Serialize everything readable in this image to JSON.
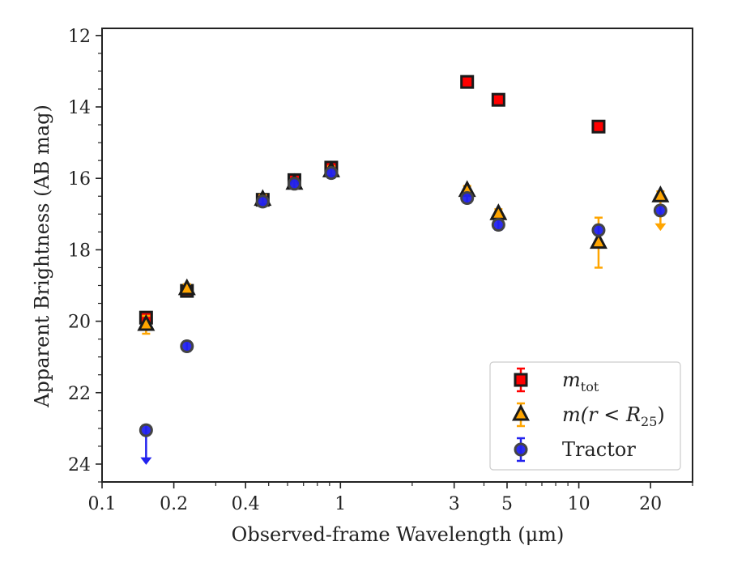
{
  "chart_data": {
    "type": "scatter",
    "xlabel": "Observed-frame Wavelength (μm)",
    "ylabel": "Apparent Brightness (AB mag)",
    "x_scale": "log",
    "xlim": [
      0.1,
      30
    ],
    "ylim": [
      24.5,
      11.8
    ],
    "y_inverted": true,
    "x_ticks": [
      {
        "value": 0.1,
        "label": "0.1"
      },
      {
        "value": 0.2,
        "label": "0.2"
      },
      {
        "value": 0.4,
        "label": "0.4"
      },
      {
        "value": 1,
        "label": "1"
      },
      {
        "value": 3,
        "label": "3"
      },
      {
        "value": 5,
        "label": "5"
      },
      {
        "value": 10,
        "label": "10"
      },
      {
        "value": 20,
        "label": "20"
      }
    ],
    "y_ticks": [
      12,
      14,
      16,
      18,
      20,
      22,
      24
    ],
    "legend_position": "lower-right",
    "legend": [
      {
        "main": "m",
        "sub": "tot",
        "series": 0
      },
      {
        "main": "m(r < R",
        "sub": "25",
        "after": ")",
        "series": 1
      },
      {
        "main": "Tractor",
        "sub": "",
        "series": 2
      }
    ],
    "series": [
      {
        "marker": "square",
        "color": "#ff0000",
        "edge_color": "#1a1a1a",
        "err_color": "#ff0000",
        "points": [
          {
            "x": 0.153,
            "y": 19.9
          },
          {
            "x": 0.227,
            "y": 19.15
          },
          {
            "x": 0.472,
            "y": 16.6
          },
          {
            "x": 0.641,
            "y": 16.05
          },
          {
            "x": 0.915,
            "y": 15.7
          },
          {
            "x": 3.4,
            "y": 13.3
          },
          {
            "x": 4.6,
            "y": 13.8
          },
          {
            "x": 12.1,
            "y": 14.55
          }
        ]
      },
      {
        "marker": "triangle",
        "color": "#ffa500",
        "edge_color": "#1a1a1a",
        "err_color": "#ffa500",
        "points": [
          {
            "x": 0.153,
            "y": 20.1,
            "err": 0.25
          },
          {
            "x": 0.227,
            "y": 19.1
          },
          {
            "x": 0.472,
            "y": 16.6
          },
          {
            "x": 0.641,
            "y": 16.15
          },
          {
            "x": 0.915,
            "y": 15.8
          },
          {
            "x": 3.4,
            "y": 16.35
          },
          {
            "x": 4.6,
            "y": 17.0
          },
          {
            "x": 12.1,
            "y": 17.8,
            "err_low": 0.7,
            "err_high": 0.7
          },
          {
            "x": 22.0,
            "y": 16.5,
            "upper_limit": true
          }
        ]
      },
      {
        "marker": "circle",
        "color": "#2222ee",
        "edge_color": "#444444",
        "err_color": "#2222ee",
        "points": [
          {
            "x": 0.153,
            "y": 23.05,
            "upper_limit": true
          },
          {
            "x": 0.227,
            "y": 20.7
          },
          {
            "x": 0.472,
            "y": 16.65
          },
          {
            "x": 0.641,
            "y": 16.15
          },
          {
            "x": 0.915,
            "y": 15.85
          },
          {
            "x": 3.4,
            "y": 16.55
          },
          {
            "x": 4.6,
            "y": 17.3
          },
          {
            "x": 12.1,
            "y": 17.45
          },
          {
            "x": 22.0,
            "y": 16.9
          }
        ]
      }
    ]
  }
}
